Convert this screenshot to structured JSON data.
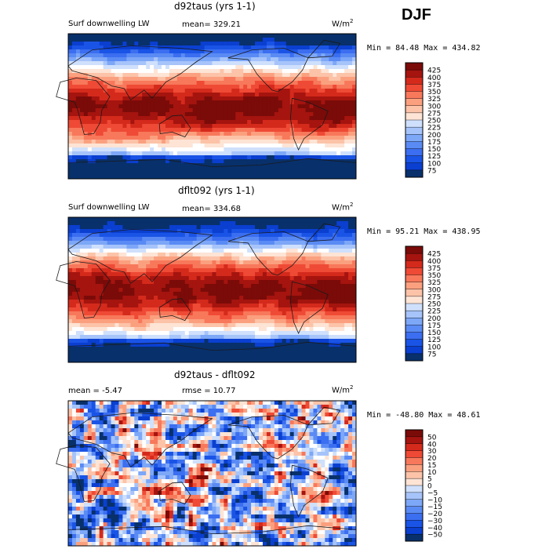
{
  "season": "DJF",
  "colors": {
    "abs_scale": [
      "#08306b",
      "#0a3fd0",
      "#1a54e6",
      "#3b6ef0",
      "#5a8bf4",
      "#7da7f7",
      "#a6c4fa",
      "#cfe0fc",
      "#ffffff",
      "#fde4d5",
      "#fcc3a8",
      "#fba07f",
      "#f8785b",
      "#ef4a35",
      "#d42a1c",
      "#a5140f",
      "#7a0b08"
    ],
    "diff_scale": [
      "#08306b",
      "#0a3fd0",
      "#1a54e6",
      "#3b6ef0",
      "#5a8bf4",
      "#7da7f7",
      "#a6c4fa",
      "#cfe0fc",
      "#ffffff",
      "#fde4d5",
      "#fcc3a8",
      "#fba07f",
      "#f8785b",
      "#ef4a35",
      "#d42a1c",
      "#a5140f",
      "#7a0b08"
    ],
    "ocean_top": "#e25638",
    "land_line": "#1a1a1a"
  },
  "panels": [
    {
      "title": "d92taus (yrs 1-1)",
      "left_label": "Surf downwelling LW",
      "stat_label": "mean=",
      "stat_value": "329.21",
      "units": "W/m",
      "units_sup": "2",
      "range_text": "Min =  84.48 Max = 434.82"
    },
    {
      "title": "dflt092 (yrs 1-1)",
      "left_label": "Surf downwelling LW",
      "stat_label": "mean=",
      "stat_value": "334.68",
      "units": "W/m",
      "units_sup": "2",
      "range_text": "Min =  95.21 Max = 438.95"
    },
    {
      "title": "d92taus - dflt092",
      "left_label": "mean =   -5.47",
      "stat_label": "rmse =",
      "stat_value": "10.77",
      "units": "W/m",
      "units_sup": "2",
      "range_text": "Min = -48.80 Max =  48.61"
    }
  ],
  "chart_data": [
    {
      "type": "heatmap",
      "title": "d92taus (yrs 1-1)",
      "variable": "Surf downwelling LW",
      "units": "W/m2",
      "mean": 329.21,
      "min": 84.48,
      "max": 434.82,
      "colorbar_levels": [
        425,
        400,
        375,
        350,
        325,
        300,
        275,
        250,
        225,
        200,
        175,
        150,
        125,
        100,
        75
      ]
    },
    {
      "type": "heatmap",
      "title": "dflt092 (yrs 1-1)",
      "variable": "Surf downwelling LW",
      "units": "W/m2",
      "mean": 334.68,
      "min": 95.21,
      "max": 438.95,
      "colorbar_levels": [
        425,
        400,
        375,
        350,
        325,
        300,
        275,
        250,
        225,
        200,
        175,
        150,
        125,
        100,
        75
      ]
    },
    {
      "type": "heatmap",
      "title": "d92taus - dflt092",
      "units": "W/m2",
      "mean": -5.47,
      "rmse": 10.77,
      "min": -48.8,
      "max": 48.61,
      "colorbar_levels": [
        "50",
        "40",
        "30",
        "20",
        "15",
        "10",
        "5",
        "0",
        "−5",
        "−10",
        "−15",
        "−20",
        "−30",
        "−40",
        "−50"
      ]
    }
  ]
}
